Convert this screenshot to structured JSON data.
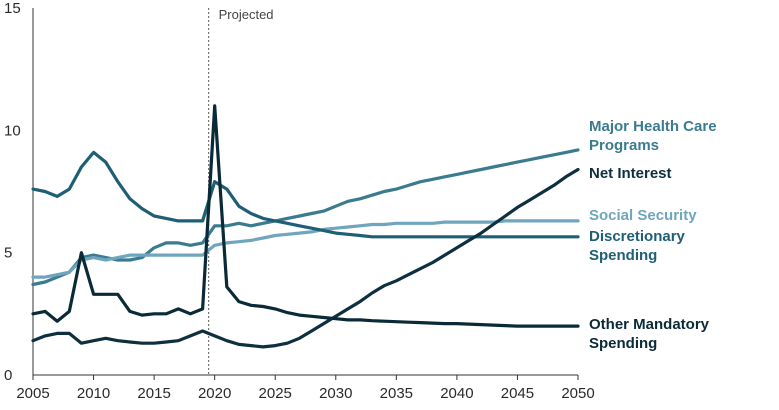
{
  "chart_data": {
    "type": "line",
    "title": "",
    "xlabel": "",
    "ylabel": "",
    "xlim": [
      2005,
      2050
    ],
    "ylim": [
      0,
      15
    ],
    "x_ticks": [
      "2005",
      "2010",
      "2015",
      "2020",
      "2025",
      "2030",
      "2035",
      "2040",
      "2045",
      "2050"
    ],
    "y_ticks": [
      "0",
      "5",
      "10",
      "15"
    ],
    "grid": false,
    "annotation": {
      "x": 2019.5,
      "label": "Projected"
    },
    "series": [
      {
        "name": "Major Health Care Programs",
        "label_lines": [
          "Major Health Care",
          "Programs"
        ],
        "color": "#3b7b8f",
        "x": [
          2005,
          2006,
          2007,
          2008,
          2009,
          2010,
          2011,
          2012,
          2013,
          2014,
          2015,
          2016,
          2017,
          2018,
          2019,
          2020,
          2021,
          2022,
          2023,
          2024,
          2025,
          2026,
          2027,
          2028,
          2029,
          2030,
          2031,
          2032,
          2033,
          2034,
          2035,
          2036,
          2037,
          2038,
          2039,
          2040,
          2041,
          2042,
          2043,
          2044,
          2045,
          2046,
          2047,
          2048,
          2049,
          2050
        ],
        "y": [
          3.7,
          3.8,
          4.0,
          4.2,
          4.8,
          4.9,
          4.8,
          4.7,
          4.7,
          4.8,
          5.2,
          5.4,
          5.4,
          5.3,
          5.4,
          6.1,
          6.1,
          6.2,
          6.1,
          6.2,
          6.3,
          6.4,
          6.5,
          6.6,
          6.7,
          6.9,
          7.1,
          7.2,
          7.35,
          7.5,
          7.6,
          7.75,
          7.9,
          8.0,
          8.1,
          8.2,
          8.3,
          8.4,
          8.5,
          8.6,
          8.7,
          8.8,
          8.9,
          9.0,
          9.1,
          9.2
        ]
      },
      {
        "name": "Net Interest",
        "label_lines": [
          "Net Interest"
        ],
        "color": "#0d2f3f",
        "x": [
          2005,
          2006,
          2007,
          2008,
          2009,
          2010,
          2011,
          2012,
          2013,
          2014,
          2015,
          2016,
          2017,
          2018,
          2019,
          2020,
          2021,
          2022,
          2023,
          2024,
          2025,
          2026,
          2027,
          2028,
          2029,
          2030,
          2031,
          2032,
          2033,
          2034,
          2035,
          2036,
          2037,
          2038,
          2039,
          2040,
          2041,
          2042,
          2043,
          2044,
          2045,
          2046,
          2047,
          2048,
          2049,
          2050
        ],
        "y": [
          1.4,
          1.6,
          1.7,
          1.7,
          1.3,
          1.4,
          1.5,
          1.4,
          1.35,
          1.3,
          1.3,
          1.35,
          1.4,
          1.6,
          1.8,
          1.6,
          1.4,
          1.25,
          1.2,
          1.15,
          1.2,
          1.3,
          1.5,
          1.8,
          2.1,
          2.4,
          2.7,
          3.0,
          3.35,
          3.65,
          3.85,
          4.1,
          4.35,
          4.6,
          4.9,
          5.2,
          5.5,
          5.8,
          6.15,
          6.5,
          6.85,
          7.15,
          7.45,
          7.75,
          8.1,
          8.4
        ]
      },
      {
        "name": "Social Security",
        "label_lines": [
          "Social Security"
        ],
        "color": "#6fa6bd",
        "x": [
          2005,
          2006,
          2007,
          2008,
          2009,
          2010,
          2011,
          2012,
          2013,
          2014,
          2015,
          2016,
          2017,
          2018,
          2019,
          2020,
          2021,
          2022,
          2023,
          2024,
          2025,
          2026,
          2027,
          2028,
          2029,
          2030,
          2031,
          2032,
          2033,
          2034,
          2035,
          2036,
          2037,
          2038,
          2039,
          2040,
          2041,
          2042,
          2043,
          2044,
          2045,
          2046,
          2047,
          2048,
          2049,
          2050
        ],
        "y": [
          4.0,
          4.0,
          4.1,
          4.2,
          4.7,
          4.8,
          4.7,
          4.8,
          4.9,
          4.9,
          4.9,
          4.9,
          4.9,
          4.9,
          4.9,
          5.3,
          5.4,
          5.45,
          5.5,
          5.6,
          5.7,
          5.75,
          5.8,
          5.85,
          5.95,
          6.0,
          6.05,
          6.1,
          6.15,
          6.15,
          6.2,
          6.2,
          6.2,
          6.2,
          6.25,
          6.25,
          6.25,
          6.25,
          6.25,
          6.3,
          6.3,
          6.3,
          6.3,
          6.3,
          6.3,
          6.3
        ]
      },
      {
        "name": "Discretionary Spending",
        "label_lines": [
          "Discretionary",
          "Spending"
        ],
        "color": "#1f5f75",
        "x": [
          2005,
          2006,
          2007,
          2008,
          2009,
          2010,
          2011,
          2012,
          2013,
          2014,
          2015,
          2016,
          2017,
          2018,
          2019,
          2020,
          2021,
          2022,
          2023,
          2024,
          2025,
          2026,
          2027,
          2028,
          2029,
          2030,
          2031,
          2032,
          2033,
          2034,
          2035,
          2036,
          2037,
          2038,
          2039,
          2040,
          2041,
          2042,
          2043,
          2044,
          2045,
          2046,
          2047,
          2048,
          2049,
          2050
        ],
        "y": [
          7.6,
          7.5,
          7.3,
          7.6,
          8.5,
          9.1,
          8.7,
          7.9,
          7.2,
          6.8,
          6.5,
          6.4,
          6.3,
          6.3,
          6.3,
          7.9,
          7.6,
          6.9,
          6.6,
          6.4,
          6.3,
          6.2,
          6.1,
          6.0,
          5.9,
          5.8,
          5.75,
          5.7,
          5.65,
          5.65,
          5.65,
          5.65,
          5.65,
          5.65,
          5.65,
          5.65,
          5.65,
          5.65,
          5.65,
          5.65,
          5.65,
          5.65,
          5.65,
          5.65,
          5.65,
          5.65
        ]
      },
      {
        "name": "Other Mandatory Spending",
        "label_lines": [
          "Other Mandatory",
          "Spending"
        ],
        "color": "#0a2a38",
        "x": [
          2005,
          2006,
          2007,
          2008,
          2009,
          2010,
          2011,
          2012,
          2013,
          2014,
          2015,
          2016,
          2017,
          2018,
          2019,
          2020,
          2021,
          2022,
          2023,
          2024,
          2025,
          2026,
          2027,
          2028,
          2029,
          2030,
          2031,
          2032,
          2033,
          2034,
          2035,
          2036,
          2037,
          2038,
          2039,
          2040,
          2041,
          2042,
          2043,
          2044,
          2045,
          2046,
          2047,
          2048,
          2049,
          2050
        ],
        "y": [
          2.5,
          2.6,
          2.2,
          2.6,
          5.0,
          3.3,
          3.3,
          3.3,
          2.6,
          2.45,
          2.5,
          2.5,
          2.7,
          2.5,
          2.7,
          11.0,
          3.6,
          3.0,
          2.85,
          2.8,
          2.7,
          2.55,
          2.45,
          2.4,
          2.35,
          2.3,
          2.25,
          2.25,
          2.22,
          2.2,
          2.18,
          2.16,
          2.14,
          2.12,
          2.1,
          2.1,
          2.08,
          2.06,
          2.04,
          2.02,
          2.0,
          2.0,
          2.0,
          2.0,
          2.0,
          2.0
        ]
      }
    ]
  }
}
